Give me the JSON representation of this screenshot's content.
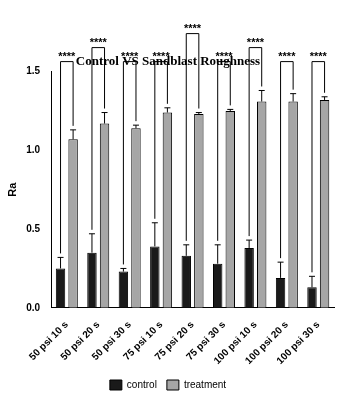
{
  "chart_data": {
    "type": "bar",
    "title": "Control VS Sandblast Roughness",
    "y_label": "Ra",
    "categories": [
      "50 psi 10 s",
      "50 psi 20 s",
      "50 psi 30 s",
      "75 psi 10 s",
      "75 psi 20 s",
      "75 psi 30 s",
      "100 psi 10 s",
      "100 psi 20 s",
      "100 psi 30 s"
    ],
    "series": [
      {
        "name": "control",
        "color": "#1a1a1a",
        "values": [
          0.25,
          0.35,
          0.23,
          0.39,
          0.33,
          0.28,
          0.38,
          0.19,
          0.13
        ],
        "errors": [
          0.07,
          0.12,
          0.02,
          0.15,
          0.07,
          0.12,
          0.05,
          0.1,
          0.07
        ]
      },
      {
        "name": "treatment",
        "color": "#a6a6a6",
        "values": [
          1.07,
          1.17,
          1.14,
          1.24,
          1.23,
          1.25,
          1.31,
          1.31,
          1.32
        ],
        "errors": [
          0.06,
          0.07,
          0.02,
          0.03,
          0.01,
          0.01,
          0.07,
          0.05,
          0.02
        ]
      }
    ],
    "ylim": [
      0,
      1.5
    ],
    "yticks": [
      {
        "value": 0,
        "label": "0.0"
      },
      {
        "value": 0.5,
        "label": "0.5"
      },
      {
        "value": 1,
        "label": "1.0"
      },
      {
        "value": 1.5,
        "label": "1.5"
      }
    ],
    "grid": false,
    "legend": "bottom",
    "annotations": [
      {
        "category": "50 psi 10 s",
        "text": "****"
      },
      {
        "category": "50 psi 20 s",
        "text": "****"
      },
      {
        "category": "50 psi 30 s",
        "text": "****"
      },
      {
        "category": "75 psi 10 s",
        "text": "****"
      },
      {
        "category": "75 psi 20 s",
        "text": "****"
      },
      {
        "category": "75 psi 30 s",
        "text": "****"
      },
      {
        "category": "100 psi 10 s",
        "text": "****"
      },
      {
        "category": "100 psi 20 s",
        "text": "****"
      },
      {
        "category": "100 psi 30 s",
        "text": "****"
      }
    ]
  }
}
